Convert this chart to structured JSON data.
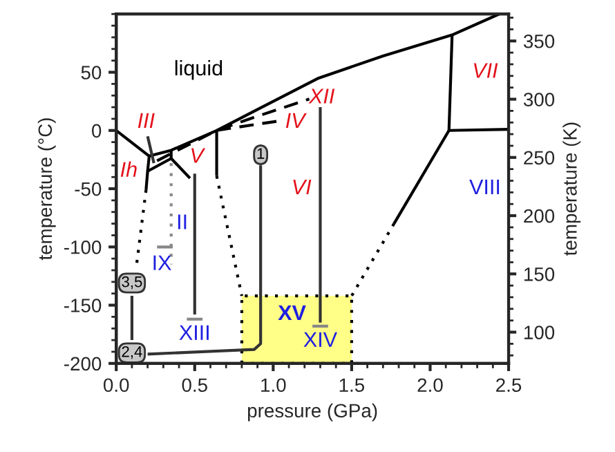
{
  "chart_data": {
    "type": "line",
    "xlabel": "pressure (GPa)",
    "ylabel": "temperature (°C)",
    "y2label": "temperature (K)",
    "xlim": [
      0,
      2.5
    ],
    "xticks": [
      {
        "value": 0,
        "label": "0.0"
      },
      {
        "value": 0.5,
        "label": "0.5"
      },
      {
        "value": 1.0,
        "label": "1.0"
      },
      {
        "value": 1.5,
        "label": "1.5"
      },
      {
        "value": 2.0,
        "label": "2.0"
      },
      {
        "value": 2.5,
        "label": "2.5"
      }
    ],
    "ylim": [
      -200,
      100
    ],
    "yticks": [
      -200,
      -150,
      -100,
      -50,
      0,
      50
    ],
    "y2lim": [
      73.15,
      373.15
    ],
    "y2ticks": [
      100,
      150,
      200,
      250,
      300,
      350
    ],
    "grid": false,
    "marker": "none",
    "series": [
      {
        "type": "area",
        "color": "#ffff88",
        "line_style": "dotted",
        "x": [
          0.8,
          0.8,
          1.5,
          1.5
        ],
        "values": [
          -200,
          -142,
          -142,
          -200
        ]
      },
      {
        "color": "#000000",
        "line_style": "solid",
        "x": [
          0,
          0.21
        ],
        "values": [
          0,
          -22
        ]
      },
      {
        "color": "#000000",
        "line_style": "solid",
        "x": [
          0.21,
          0.35,
          0.64,
          0.9,
          1.29,
          1.7,
          2.14,
          2.44
        ],
        "values": [
          -22,
          -17,
          0,
          18,
          45,
          64,
          82,
          100
        ]
      },
      {
        "color": "#000000",
        "line_style": "solid",
        "x": [
          0.21,
          0.2,
          0.35,
          0.35
        ],
        "values": [
          -22,
          -35,
          -24,
          -17
        ]
      },
      {
        "color": "#000000",
        "line_style": "solid",
        "x": [
          0.35,
          0.47
        ],
        "values": [
          -24,
          -41
        ]
      },
      {
        "color": "#000000",
        "line_style": "solid",
        "x": [
          0.2,
          0.19
        ],
        "values": [
          -35,
          -51
        ]
      },
      {
        "color": "#000000",
        "line_style": "dotted",
        "x": [
          0.19,
          0.13
        ],
        "values": [
          -51,
          -115
        ]
      },
      {
        "color": "#888888",
        "line_style": "dotted",
        "x": [
          0.35,
          0.35
        ],
        "values": [
          -28,
          -115
        ]
      },
      {
        "color": "#000000",
        "line_style": "solid",
        "x": [
          0.64,
          0.64
        ],
        "values": [
          0,
          -39
        ]
      },
      {
        "color": "#000000",
        "line_style": "dotted",
        "x": [
          0.64,
          0.8
        ],
        "values": [
          -39,
          -142
        ]
      },
      {
        "color": "#000000",
        "line_style": "dashed",
        "x": [
          0.26,
          0.64,
          0.85,
          1.23
        ],
        "values": [
          -26,
          0,
          10,
          27
        ]
      },
      {
        "color": "#000000",
        "line_style": "dashed",
        "x": [
          0.64,
          0.73,
          1.03
        ],
        "values": [
          0,
          2,
          8
        ]
      },
      {
        "color": "#000000",
        "line_style": "solid",
        "x": [
          2.14,
          2.12
        ],
        "values": [
          82,
          0
        ]
      },
      {
        "color": "#000000",
        "line_style": "solid",
        "x": [
          2.12,
          2.5
        ],
        "values": [
          0,
          1
        ]
      },
      {
        "color": "#000000",
        "line_style": "solid",
        "x": [
          2.12,
          1.77
        ],
        "values": [
          0,
          -80
        ]
      },
      {
        "color": "#000000",
        "line_style": "dotted",
        "x": [
          1.77,
          1.5
        ],
        "values": [
          -80,
          -142
        ]
      },
      {
        "color": "#888888",
        "line_style": "solid",
        "x": [
          0.26,
          0.36
        ],
        "values": [
          -100,
          -100
        ]
      },
      {
        "color": "#888888",
        "line_style": "solid",
        "x": [
          0.45,
          0.55
        ],
        "values": [
          -162,
          -162
        ]
      },
      {
        "color": "#888888",
        "line_style": "solid",
        "x": [
          1.25,
          1.35
        ],
        "values": [
          -168,
          -168
        ]
      },
      {
        "color": "#333333",
        "line_style": "solid",
        "x": [
          0.5,
          0.5
        ],
        "values": [
          -37,
          -158
        ]
      },
      {
        "color": "#333333",
        "line_style": "solid",
        "x": [
          0.92,
          0.92,
          0.88,
          0.2
        ],
        "values": [
          -30,
          -183,
          -188,
          -192
        ]
      },
      {
        "color": "#333333",
        "line_style": "solid",
        "x": [
          1.3,
          1.3
        ],
        "values": [
          20,
          -165
        ]
      },
      {
        "color": "#333333",
        "line_style": "solid",
        "x": [
          0.1,
          0.1
        ],
        "values": [
          -142,
          -180
        ]
      },
      {
        "color": "#333333",
        "line_style": "solid",
        "x": [
          0.2,
          0.24
        ],
        "values": [
          -5,
          -28
        ]
      }
    ],
    "annotations": [
      "liquid",
      "III",
      "Ih",
      "V",
      "IV",
      "XII",
      "VI",
      "VII",
      "VIII",
      "II",
      "IX",
      "XIII",
      "XV",
      "XIV",
      "1",
      "3,5",
      "2,4"
    ]
  }
}
